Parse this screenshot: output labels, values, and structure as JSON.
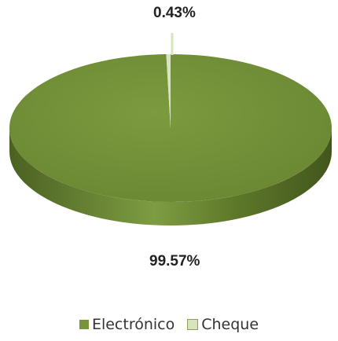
{
  "chart_data": {
    "type": "pie",
    "title": "",
    "categories": [
      "Electrónico",
      "Cheque"
    ],
    "values": [
      99.57,
      0.43
    ],
    "labels": [
      "99.57%",
      "0.43%"
    ],
    "colors": [
      "#77933c",
      "#d7e4bd"
    ],
    "legend": "bottom"
  }
}
